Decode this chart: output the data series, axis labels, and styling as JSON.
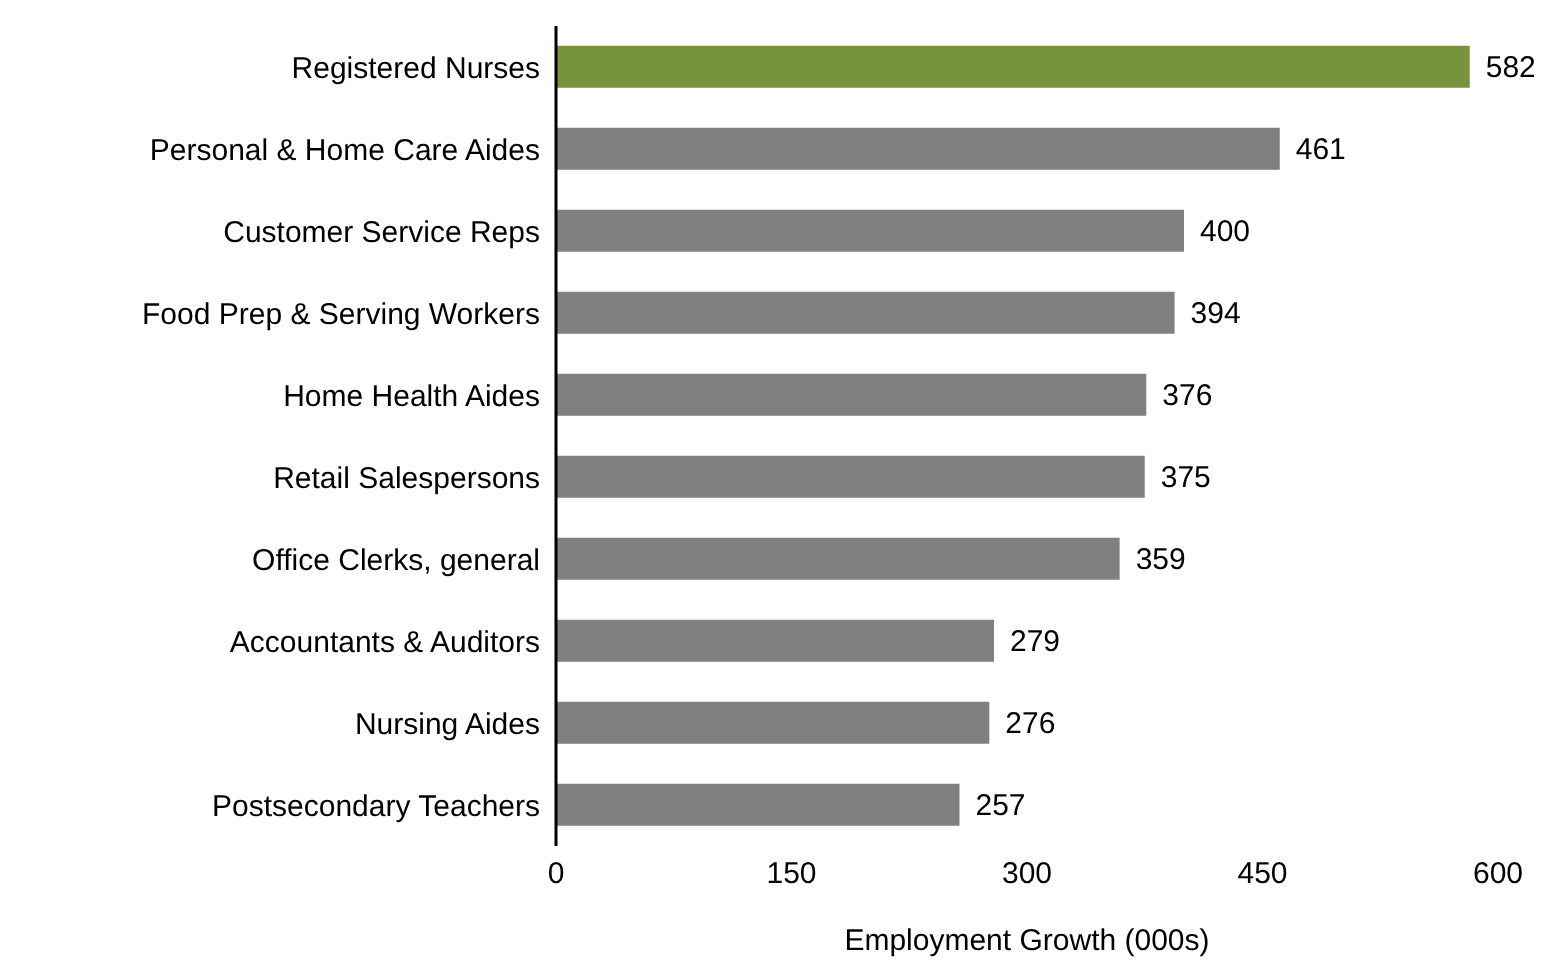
{
  "chart_data": {
    "type": "bar",
    "orientation": "horizontal",
    "xlabel": "Employment Growth (000s)",
    "categories": [
      "Registered Nurses",
      "Personal & Home Care Aides",
      "Customer Service Reps",
      "Food Prep & Serving Workers",
      "Home Health Aides",
      "Retail Salespersons",
      "Office Clerks, general",
      "Accountants & Auditors",
      "Nursing Aides",
      "Postsecondary Teachers"
    ],
    "values": [
      582,
      461,
      400,
      394,
      376,
      375,
      359,
      279,
      276,
      257
    ],
    "colors": [
      "#77933c",
      "#808080",
      "#808080",
      "#808080",
      "#808080",
      "#808080",
      "#808080",
      "#808080",
      "#808080",
      "#808080"
    ],
    "xlim": [
      0,
      600
    ],
    "xticks": [
      0,
      150,
      300,
      450,
      600
    ],
    "grid": false,
    "legend": false,
    "data_labels": true
  }
}
